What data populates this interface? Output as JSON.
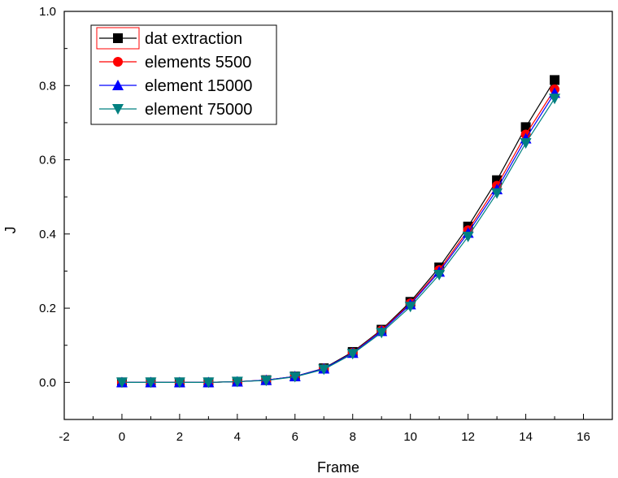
{
  "chart_data": {
    "type": "line",
    "title": "",
    "xlabel": "Frame",
    "ylabel": "J",
    "xlim": [
      -2,
      17
    ],
    "ylim": [
      -0.1,
      1.0
    ],
    "x_ticks": [
      -2,
      0,
      2,
      4,
      6,
      8,
      10,
      12,
      14,
      16
    ],
    "y_ticks": [
      0.0,
      0.2,
      0.4,
      0.6,
      0.8,
      1.0
    ],
    "x_tick_labels": [
      "-2",
      "0",
      "2",
      "4",
      "6",
      "8",
      "10",
      "12",
      "14",
      "16"
    ],
    "y_tick_labels": [
      "0.0",
      "0.2",
      "0.4",
      "0.6",
      "0.8",
      "1.0"
    ],
    "grid": false,
    "legend_position": "top-left",
    "x": [
      0,
      1,
      2,
      3,
      4,
      5,
      6,
      7,
      8,
      9,
      10,
      11,
      12,
      13,
      14,
      15
    ],
    "series": [
      {
        "name": "dat extraction",
        "color": "#000000",
        "marker": "square",
        "values": [
          0.0,
          0.0,
          0.0,
          0.0,
          0.002,
          0.006,
          0.016,
          0.038,
          0.082,
          0.142,
          0.217,
          0.31,
          0.42,
          0.545,
          0.688,
          0.815
        ]
      },
      {
        "name": "elements 5500",
        "color": "#ff0000",
        "marker": "circle",
        "values": [
          0.0,
          0.0,
          0.0,
          0.0,
          0.002,
          0.006,
          0.016,
          0.037,
          0.08,
          0.14,
          0.213,
          0.303,
          0.41,
          0.53,
          0.668,
          0.79
        ]
      },
      {
        "name": "element 15000",
        "color": "#0000ff",
        "marker": "triangle-up",
        "values": [
          0.0,
          0.0,
          0.0,
          0.0,
          0.002,
          0.006,
          0.016,
          0.037,
          0.079,
          0.138,
          0.21,
          0.298,
          0.403,
          0.52,
          0.657,
          0.78
        ]
      },
      {
        "name": "element 75000",
        "color": "#008080",
        "marker": "triangle-down",
        "values": [
          0.0,
          0.0,
          0.0,
          0.0,
          0.002,
          0.005,
          0.015,
          0.035,
          0.077,
          0.134,
          0.204,
          0.29,
          0.393,
          0.51,
          0.645,
          0.765
        ]
      }
    ]
  }
}
